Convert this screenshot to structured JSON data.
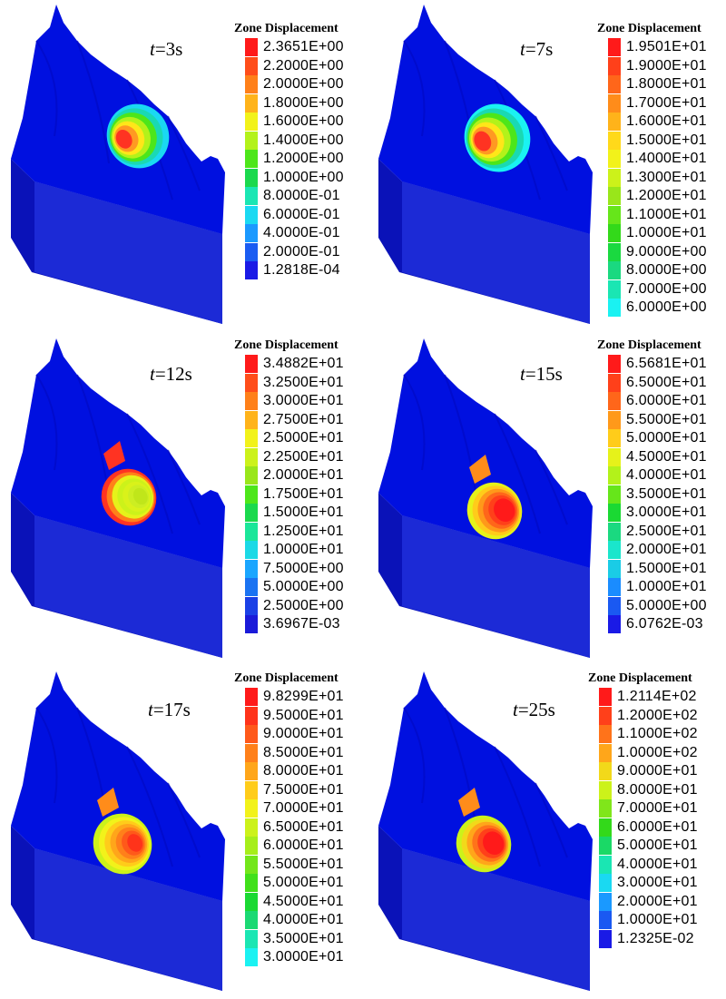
{
  "legend_title": "Zone Displacement",
  "colors": {
    "background": "#0010e0",
    "side_face": "#0a12b8",
    "front_face": "#1c2ad6"
  },
  "panels": [
    {
      "time_var": "t",
      "time_value": "=3s",
      "legend": [
        {
          "value": "2.3651E+00",
          "color": "#ff1a1a"
        },
        {
          "value": "2.2000E+00",
          "color": "#ff4d1a"
        },
        {
          "value": "2.0000E+00",
          "color": "#ff8019"
        },
        {
          "value": "1.8000E+00",
          "color": "#ffb31a"
        },
        {
          "value": "1.6000E+00",
          "color": "#f2f21a"
        },
        {
          "value": "1.4000E+00",
          "color": "#b3f21a"
        },
        {
          "value": "1.2000E+00",
          "color": "#4de61a"
        },
        {
          "value": "1.0000E+00",
          "color": "#1ad94d"
        },
        {
          "value": "8.0000E-01",
          "color": "#1ae6b3"
        },
        {
          "value": "6.0000E-01",
          "color": "#1ad9f2"
        },
        {
          "value": "4.0000E-01",
          "color": "#1a99ff"
        },
        {
          "value": "2.0000E-01",
          "color": "#1a5cf2"
        },
        {
          "value": "1.2818E-04",
          "color": "#1a1ae6"
        }
      ],
      "block_colors": [
        "#ff3322",
        "#ff9922",
        "#ffe619",
        "#b3f21a",
        "#4de61a",
        "#1ad9b3",
        "#1ad9f2"
      ]
    },
    {
      "time_var": "t",
      "time_value": "=7s",
      "legend": [
        {
          "value": "1.9501E+01",
          "color": "#ff1a1a"
        },
        {
          "value": "1.9000E+01",
          "color": "#ff401a"
        },
        {
          "value": "1.8000E+01",
          "color": "#ff661a"
        },
        {
          "value": "1.7000E+01",
          "color": "#ff8c1a"
        },
        {
          "value": "1.6000E+01",
          "color": "#ffb31a"
        },
        {
          "value": "1.5000E+01",
          "color": "#ffd91a"
        },
        {
          "value": "1.4000E+01",
          "color": "#f2f21a"
        },
        {
          "value": "1.3000E+01",
          "color": "#ccf21a"
        },
        {
          "value": "1.2000E+01",
          "color": "#99e61a"
        },
        {
          "value": "1.1000E+01",
          "color": "#66e61a"
        },
        {
          "value": "1.0000E+01",
          "color": "#33d91a"
        },
        {
          "value": "9.0000E+00",
          "color": "#1ad940"
        },
        {
          "value": "8.0000E+00",
          "color": "#1ad980"
        },
        {
          "value": "7.0000E+00",
          "color": "#1ae6b3"
        },
        {
          "value": "6.0000E+00",
          "color": "#1af2f2"
        }
      ],
      "block_colors": [
        "#ff3322",
        "#ff9922",
        "#ffe619",
        "#b3f21a",
        "#4de61a",
        "#1ad9b3",
        "#1af2f2"
      ]
    },
    {
      "time_var": "t",
      "time_value": "=12s",
      "legend": [
        {
          "value": "3.4882E+01",
          "color": "#ff1a1a"
        },
        {
          "value": "3.2500E+01",
          "color": "#ff4d1a"
        },
        {
          "value": "3.0000E+01",
          "color": "#ff8019"
        },
        {
          "value": "2.7500E+01",
          "color": "#ffb31a"
        },
        {
          "value": "2.5000E+01",
          "color": "#f2f21a"
        },
        {
          "value": "2.2500E+01",
          "color": "#ccf21a"
        },
        {
          "value": "2.0000E+01",
          "color": "#99e61a"
        },
        {
          "value": "1.7500E+01",
          "color": "#4de61a"
        },
        {
          "value": "1.5000E+01",
          "color": "#1ad94d"
        },
        {
          "value": "1.2500E+01",
          "color": "#1ae699"
        },
        {
          "value": "1.0000E+01",
          "color": "#1ad9e6"
        },
        {
          "value": "7.5000E+00",
          "color": "#1aa6ff"
        },
        {
          "value": "5.0000E+00",
          "color": "#1a73f2"
        },
        {
          "value": "2.5000E+00",
          "color": "#1a40e6"
        },
        {
          "value": "3.6967E-03",
          "color": "#1a1ad9"
        }
      ],
      "block_colors": [
        "#ff3322",
        "#ff8019",
        "#e6f21a",
        "#ccf21a",
        "#d9f21a",
        "#ccee22",
        "#c0e61a"
      ]
    },
    {
      "time_var": "t",
      "time_value": "=15s",
      "legend": [
        {
          "value": "6.5681E+01",
          "color": "#ff1a1a"
        },
        {
          "value": "6.5000E+01",
          "color": "#ff401a"
        },
        {
          "value": "6.0000E+01",
          "color": "#ff661a"
        },
        {
          "value": "5.5000E+01",
          "color": "#ff991a"
        },
        {
          "value": "5.0000E+01",
          "color": "#ffcc1a"
        },
        {
          "value": "4.5000E+01",
          "color": "#e6f21a"
        },
        {
          "value": "4.0000E+01",
          "color": "#b3f21a"
        },
        {
          "value": "3.5000E+01",
          "color": "#66e61a"
        },
        {
          "value": "3.0000E+01",
          "color": "#1ad933"
        },
        {
          "value": "2.5000E+01",
          "color": "#1ad980"
        },
        {
          "value": "2.0000E+01",
          "color": "#1ae6cc"
        },
        {
          "value": "1.5000E+01",
          "color": "#1acce6"
        },
        {
          "value": "1.0000E+01",
          "color": "#1a8cff"
        },
        {
          "value": "5.0000E+00",
          "color": "#1a59f2"
        },
        {
          "value": "6.0762E-03",
          "color": "#1a1ae6"
        }
      ],
      "block_colors": [
        "#e6f21a",
        "#ffcc1a",
        "#ff991a",
        "#ff661a",
        "#ff401a",
        "#ff1a1a",
        "#ff1a1a"
      ]
    },
    {
      "time_var": "t",
      "time_value": "=17s",
      "legend": [
        {
          "value": "9.8299E+01",
          "color": "#ff1a1a"
        },
        {
          "value": "9.5000E+01",
          "color": "#ff331a"
        },
        {
          "value": "9.0000E+01",
          "color": "#ff591a"
        },
        {
          "value": "8.5000E+01",
          "color": "#ff801a"
        },
        {
          "value": "8.0000E+01",
          "color": "#ffa61a"
        },
        {
          "value": "7.5000E+01",
          "color": "#ffcc1a"
        },
        {
          "value": "7.0000E+01",
          "color": "#f2f21a"
        },
        {
          "value": "6.5000E+01",
          "color": "#ccf21a"
        },
        {
          "value": "6.0000E+01",
          "color": "#a6ee1a"
        },
        {
          "value": "5.5000E+01",
          "color": "#73e61a"
        },
        {
          "value": "5.0000E+01",
          "color": "#40e01a"
        },
        {
          "value": "4.5000E+01",
          "color": "#1ad933"
        },
        {
          "value": "4.0000E+01",
          "color": "#1ad973"
        },
        {
          "value": "3.5000E+01",
          "color": "#1ae6b3"
        },
        {
          "value": "3.0000E+01",
          "color": "#1af2f2"
        }
      ],
      "block_colors": [
        "#ccf21a",
        "#f2f21a",
        "#ffcc1a",
        "#ffa61a",
        "#ff801a",
        "#ff591a",
        "#ff331a"
      ]
    },
    {
      "time_var": "t",
      "time_value": "=25s",
      "legend": [
        {
          "value": "1.2114E+02",
          "color": "#ff1a1a"
        },
        {
          "value": "1.2000E+02",
          "color": "#ff401a"
        },
        {
          "value": "1.1000E+02",
          "color": "#ff731a"
        },
        {
          "value": "1.0000E+02",
          "color": "#ffa61a"
        },
        {
          "value": "9.0000E+01",
          "color": "#f2d91a"
        },
        {
          "value": "8.0000E+01",
          "color": "#ccf21a"
        },
        {
          "value": "7.0000E+01",
          "color": "#80e61a"
        },
        {
          "value": "6.0000E+01",
          "color": "#33d91a"
        },
        {
          "value": "5.0000E+01",
          "color": "#1ad966"
        },
        {
          "value": "4.0000E+01",
          "color": "#1ae6b3"
        },
        {
          "value": "3.0000E+01",
          "color": "#1ad9f2"
        },
        {
          "value": "2.0000E+01",
          "color": "#1a99ff"
        },
        {
          "value": "1.0000E+01",
          "color": "#1a59f2"
        },
        {
          "value": "1.2325E-02",
          "color": "#1a1ae6"
        }
      ],
      "block_colors": [
        "#ccf21a",
        "#f2d91a",
        "#ffa61a",
        "#ff731a",
        "#ff401a",
        "#ff1a1a",
        "#ff1a1a"
      ]
    }
  ]
}
